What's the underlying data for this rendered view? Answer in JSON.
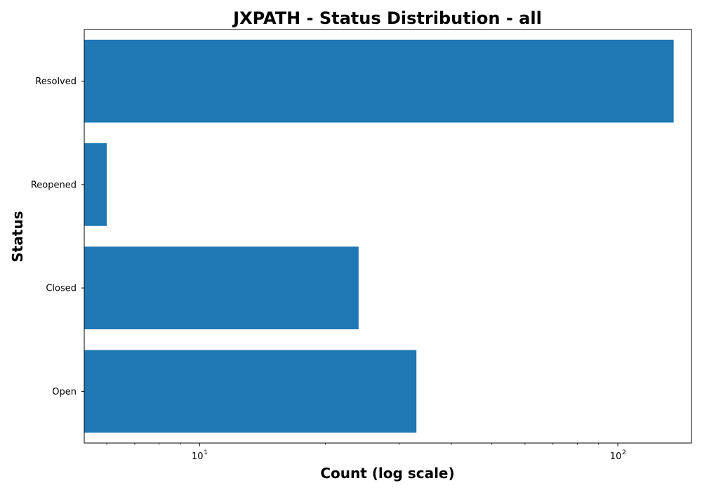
{
  "chart_data": {
    "type": "bar",
    "orientation": "horizontal",
    "title": "JXPATH - Status Distribution - all",
    "xlabel": "Count (log scale)",
    "ylabel": "Status",
    "x_scale": "log",
    "xlim": [
      5.3,
      150
    ],
    "x_ticks": [
      {
        "value": 10,
        "base": "10",
        "exp": "1"
      },
      {
        "value": 100,
        "base": "10",
        "exp": "2"
      }
    ],
    "categories": [
      "Resolved",
      "Reopened",
      "Closed",
      "Open"
    ],
    "values": [
      136,
      6,
      24,
      33
    ],
    "bar_color": "#1f77b4",
    "grid": false,
    "legend": "none"
  }
}
